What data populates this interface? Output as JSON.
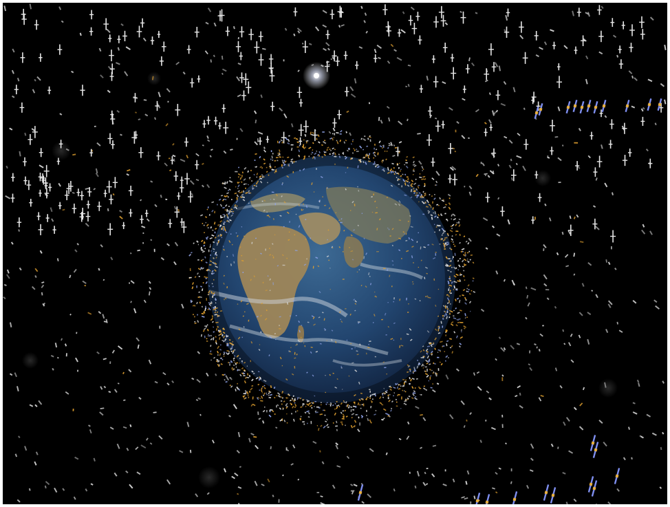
{
  "scene": {
    "subject": "earth-globe",
    "object_types": [
      "satellite",
      "debris-fragment"
    ],
    "colors": {
      "background": "#000000",
      "frame": "#ffffff",
      "ocean": "#1e3a63",
      "land": "#a08a62",
      "cloud": "#c9d2dc",
      "satellite": "#e6e6e6",
      "debris": "#d8d8d8",
      "orange_debris": "#e0a030",
      "blue_debris": "#8fa3e8",
      "geo_satellite": "#7f8ff0",
      "geo_satellite_accent": "#e8b040"
    }
  }
}
